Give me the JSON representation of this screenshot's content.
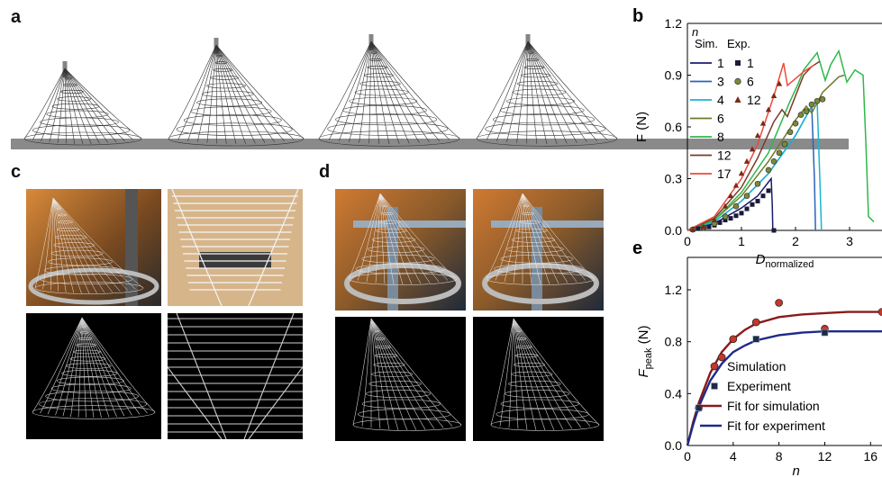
{
  "panel_labels": {
    "a": "a",
    "b": "b",
    "c": "c",
    "d": "d",
    "e": "e"
  },
  "colors": {
    "n1": "#1c1c6e",
    "n3": "#2a63b8",
    "n4": "#19b5d1",
    "n6": "#6e7a2a",
    "n8": "#2fb84a",
    "n12": "#7a3a2a",
    "n17": "#ee4a3a",
    "fit_sim": "#8a1a1a",
    "fit_exp": "#1f2a8a",
    "sim_marker": "#c0392b"
  },
  "chart_data": [
    {
      "type": "line",
      "panel": "b",
      "xlabel": "D",
      "xlabel_sub": "normalized",
      "ylabel": "F (N)",
      "xlim": [
        0,
        3.6
      ],
      "ylim": [
        0,
        1.2
      ],
      "xticks": [
        "0",
        "1",
        "2",
        "3"
      ],
      "yticks": [
        "0.0",
        "0.3",
        "0.6",
        "0.9",
        "1.2"
      ],
      "legend_title": "n",
      "legend_sim_header": "Sim.",
      "legend_exp_header": "Exp.",
      "series": [
        {
          "name": "1",
          "kind": "sim",
          "x": [
            0,
            0.5,
            1.0,
            1.3,
            1.55,
            1.57,
            1.58
          ],
          "y": [
            0,
            0.04,
            0.13,
            0.2,
            0.3,
            0.15,
            0
          ]
        },
        {
          "name": "3",
          "kind": "sim",
          "x": [
            0,
            0.5,
            1.0,
            1.5,
            2.0,
            2.3,
            2.35,
            2.37
          ],
          "y": [
            0,
            0.05,
            0.17,
            0.33,
            0.55,
            0.72,
            0.3,
            0
          ]
        },
        {
          "name": "4",
          "kind": "sim",
          "x": [
            0,
            0.5,
            1.0,
            1.5,
            2.0,
            2.3,
            2.4,
            2.45,
            2.48
          ],
          "y": [
            0,
            0.05,
            0.17,
            0.33,
            0.55,
            0.72,
            0.75,
            0.3,
            0
          ]
        },
        {
          "name": "6",
          "kind": "sim",
          "x": [
            0,
            0.5,
            1.0,
            1.5,
            2.0,
            2.2,
            2.3,
            2.5,
            2.8,
            2.9
          ],
          "y": [
            0,
            0.06,
            0.2,
            0.4,
            0.64,
            0.72,
            0.68,
            0.8,
            0.89,
            0.9
          ]
        },
        {
          "name": "8",
          "kind": "sim",
          "x": [
            0,
            0.5,
            1.0,
            1.5,
            1.9,
            2.05,
            2.15,
            2.4,
            2.55,
            2.65,
            2.8,
            2.95,
            3.1,
            3.25,
            3.3,
            3.35,
            3.45
          ],
          "y": [
            0,
            0.06,
            0.22,
            0.45,
            0.75,
            0.85,
            0.93,
            1.03,
            0.87,
            0.96,
            1.04,
            0.86,
            0.93,
            0.9,
            0.52,
            0.08,
            0.05
          ]
        },
        {
          "name": "12",
          "kind": "sim",
          "x": [
            0,
            0.5,
            1.0,
            1.3,
            1.6,
            1.75,
            1.85,
            2.0,
            2.15,
            2.3,
            2.45
          ],
          "y": [
            0,
            0.07,
            0.25,
            0.42,
            0.63,
            0.7,
            0.66,
            0.78,
            0.9,
            0.95,
            0.98
          ]
        },
        {
          "name": "17",
          "kind": "sim",
          "x": [
            0,
            0.5,
            1.0,
            1.3,
            1.6,
            1.78,
            1.85,
            2.0,
            2.15,
            2.35
          ],
          "y": [
            0,
            0.08,
            0.3,
            0.5,
            0.78,
            0.97,
            0.84,
            0.88,
            0.92,
            0.96
          ]
        },
        {
          "name": "1",
          "kind": "exp",
          "marker": "square",
          "x": [
            0.1,
            0.2,
            0.3,
            0.4,
            0.5,
            0.6,
            0.7,
            0.8,
            0.9,
            1.0,
            1.1,
            1.2,
            1.3,
            1.4,
            1.5,
            1.6
          ],
          "y": [
            0.005,
            0.01,
            0.015,
            0.02,
            0.03,
            0.045,
            0.06,
            0.07,
            0.085,
            0.1,
            0.125,
            0.15,
            0.17,
            0.2,
            0.23,
            0.0
          ]
        },
        {
          "name": "6",
          "kind": "exp",
          "marker": "circle",
          "x": [
            0.1,
            0.3,
            0.5,
            0.7,
            0.9,
            1.1,
            1.3,
            1.5,
            1.6,
            1.7,
            1.8,
            1.9,
            2.0,
            2.1,
            2.2,
            2.3,
            2.4,
            2.5
          ],
          "y": [
            0.005,
            0.015,
            0.04,
            0.08,
            0.14,
            0.2,
            0.27,
            0.35,
            0.4,
            0.45,
            0.5,
            0.57,
            0.62,
            0.67,
            0.69,
            0.73,
            0.75,
            0.76
          ]
        },
        {
          "name": "12",
          "kind": "exp",
          "marker": "triangle",
          "x": [
            0.1,
            0.3,
            0.5,
            0.7,
            0.8,
            0.9,
            1.0,
            1.1,
            1.2,
            1.3,
            1.4,
            1.5,
            1.6,
            1.7
          ],
          "y": [
            0.005,
            0.02,
            0.06,
            0.14,
            0.2,
            0.26,
            0.33,
            0.4,
            0.47,
            0.55,
            0.62,
            0.7,
            0.78,
            0.85
          ]
        }
      ]
    },
    {
      "type": "scatter",
      "panel": "e",
      "xlabel": "n",
      "ylabel": "F",
      "ylabel_sub": "peak",
      "ylabel_unit": " (N)",
      "xlim": [
        0,
        17
      ],
      "ylim": [
        0,
        1.45
      ],
      "xticks": [
        "0",
        "4",
        "8",
        "12",
        "16"
      ],
      "yticks": [
        "0.0",
        "0.4",
        "0.8",
        "1.2"
      ],
      "series": [
        {
          "name": "Simulation",
          "kind": "points",
          "marker": "circle",
          "x": [
            1,
            3,
            4,
            6,
            8,
            12,
            17
          ],
          "y": [
            0.29,
            0.68,
            0.82,
            0.95,
            1.1,
            0.9,
            1.03
          ]
        },
        {
          "name": "Experiment",
          "kind": "points",
          "marker": "square",
          "x": [
            1,
            6,
            12
          ],
          "y": [
            0.29,
            0.82,
            0.87
          ]
        },
        {
          "name": "Fit for simulation",
          "kind": "fit",
          "x": [
            0,
            0.5,
            1,
            2,
            3,
            4,
            5,
            6,
            8,
            10,
            12,
            14,
            17
          ],
          "y": [
            0,
            0.18,
            0.33,
            0.56,
            0.72,
            0.82,
            0.89,
            0.94,
            0.99,
            1.01,
            1.02,
            1.03,
            1.03
          ]
        },
        {
          "name": "Fit for experiment",
          "kind": "fit",
          "x": [
            0,
            0.5,
            1,
            2,
            3,
            4,
            5,
            6,
            8,
            10,
            12,
            14,
            17
          ],
          "y": [
            0,
            0.16,
            0.3,
            0.5,
            0.63,
            0.72,
            0.77,
            0.81,
            0.85,
            0.87,
            0.88,
            0.88,
            0.88
          ]
        }
      ]
    }
  ]
}
